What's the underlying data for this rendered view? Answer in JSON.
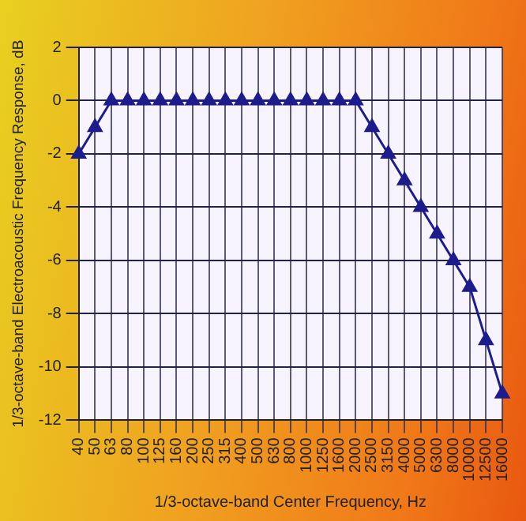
{
  "chart_data": {
    "type": "line",
    "xlabel": "1/3-octave-band Center Frequency, Hz",
    "ylabel": "1/3-octave-band Electroacoustic Frequency Response, dB",
    "categories": [
      "40",
      "50",
      "63",
      "80",
      "100",
      "125",
      "160",
      "200",
      "250",
      "315",
      "400",
      "500",
      "630",
      "800",
      "1000",
      "1250",
      "1600",
      "2000",
      "2500",
      "3150",
      "4000",
      "5000",
      "6300",
      "8000",
      "10000",
      "12500",
      "16000"
    ],
    "series": [
      {
        "color": "#1c1c8c",
        "values": [
          -2,
          -1,
          0,
          0,
          0,
          0,
          0,
          0,
          0,
          0,
          0,
          0,
          0,
          0,
          0,
          0,
          0,
          0,
          -1,
          -2,
          -3,
          -4,
          -5,
          -6,
          -7,
          -9,
          -11
        ]
      }
    ],
    "ylim": [
      -12,
      2
    ],
    "yticks": [
      -12,
      -10,
      -8,
      -6,
      -4,
      -2,
      0,
      2
    ],
    "grid": true,
    "legend": false,
    "marker": "triangle",
    "line_style": "solid"
  }
}
